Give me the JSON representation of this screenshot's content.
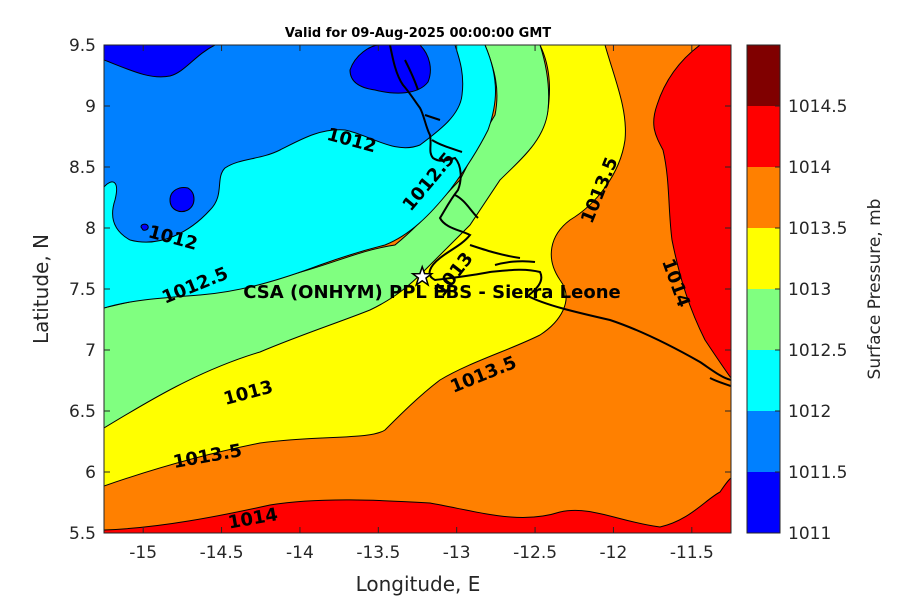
{
  "title": "Valid for 09-Aug-2025 00:00:00 GMT",
  "station_label": "CSA (ONHYM) PPL EBS  - Sierra Leone",
  "chart_data": {
    "type": "heatmap",
    "xlabel": "Longitude, E",
    "ylabel": "Latitude, N",
    "xlim": [
      -15.25,
      -11.25
    ],
    "ylim": [
      5.5,
      9.5
    ],
    "xticks": [
      "-15",
      "-14.5",
      "-14",
      "-13.5",
      "-13",
      "-12.5",
      "-12",
      "-11.5"
    ],
    "yticks": [
      "5.5",
      "6",
      "6.5",
      "7",
      "7.5",
      "8",
      "8.5",
      "9",
      "9.5"
    ],
    "station": {
      "lon": -13.22,
      "lat": 7.6
    },
    "contour_labels": [
      {
        "text": "1012",
        "lon": -13.67,
        "lat": 8.72,
        "angle": 15
      },
      {
        "text": "1012",
        "lon": -14.81,
        "lat": 7.92,
        "angle": 15
      },
      {
        "text": "1012.5",
        "lon": -14.67,
        "lat": 7.53,
        "angle": -22
      },
      {
        "text": "1012.5",
        "lon": -13.18,
        "lat": 8.38,
        "angle": -50
      },
      {
        "text": "1013",
        "lon": -13.02,
        "lat": 7.62,
        "angle": -52
      },
      {
        "text": "1013",
        "lon": -14.33,
        "lat": 6.65,
        "angle": -15
      },
      {
        "text": "1013.5",
        "lon": -12.09,
        "lat": 8.31,
        "angle": -68
      },
      {
        "text": "1013.5",
        "lon": -12.83,
        "lat": 6.8,
        "angle": -22
      },
      {
        "text": "1013.5",
        "lon": -14.59,
        "lat": 6.13,
        "angle": -10
      },
      {
        "text": "1014",
        "lon": -11.6,
        "lat": 7.55,
        "angle": 70
      },
      {
        "text": "1014",
        "lon": -14.3,
        "lat": 5.62,
        "angle": -10
      }
    ],
    "colorbar": {
      "label": "Surface Pressure, mb",
      "ticks": [
        "1011",
        "1011.5",
        "1012",
        "1012.5",
        "1013",
        "1013.5",
        "1014",
        "1014.5"
      ],
      "levels": [
        1011,
        1011.5,
        1012,
        1012.5,
        1013,
        1013.5,
        1014,
        1014.5
      ],
      "colors": [
        "#0000ff",
        "#0080ff",
        "#00ffff",
        "#80ff80",
        "#ffff00",
        "#ff8000",
        "#ff0000",
        "#800000"
      ]
    }
  }
}
